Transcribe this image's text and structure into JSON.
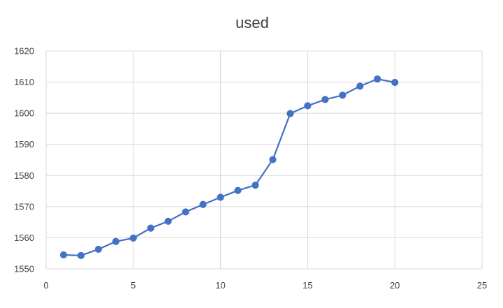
{
  "chart_data": {
    "type": "scatter",
    "title": "used",
    "xlabel": "",
    "ylabel": "",
    "xlim": [
      0,
      25
    ],
    "ylim": [
      1550,
      1620
    ],
    "x_ticks": [
      "0",
      "5",
      "10",
      "15",
      "20",
      "25"
    ],
    "y_ticks": [
      "1550",
      "1560",
      "1570",
      "1580",
      "1590",
      "1600",
      "1610",
      "1620"
    ],
    "grid": true,
    "legend": "none",
    "series": [
      {
        "color": "#4472c4",
        "style": "line-with-markers",
        "x": [
          1,
          2,
          3,
          4,
          5,
          6,
          7,
          8,
          9,
          10,
          11,
          12,
          13,
          14,
          15,
          16,
          17,
          18,
          19,
          20
        ],
        "y": [
          1554.5,
          1554.3,
          1556.3,
          1558.8,
          1559.9,
          1563.1,
          1565.3,
          1568.3,
          1570.7,
          1573.0,
          1575.2,
          1576.9,
          1585.1,
          1599.9,
          1602.4,
          1604.4,
          1605.8,
          1608.7,
          1611.0,
          1609.9
        ]
      }
    ]
  }
}
